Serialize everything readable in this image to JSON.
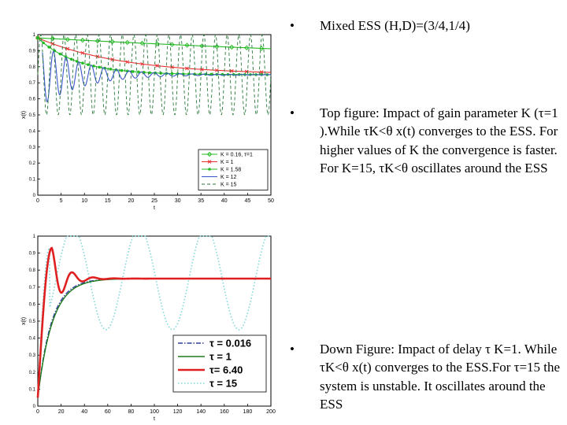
{
  "bullets": [
    {
      "marker": "•",
      "text": "Mixed ESS (H,D)=(3/4,1/4)"
    },
    {
      "marker": "•",
      "text": "Top figure: Impact of gain parameter K (τ=1 ).While τK<θ x(t) converges to the ESS. For higher values of K the convergence is faster. For K=15, τK<θ oscillates around the ESS"
    },
    {
      "marker": "•",
      "text": "Down Figure: Impact of delay τ K=1. While τK<θ x(t) converges to the ESS.For τ=15 the system is unstable. It oscillates around the ESS"
    }
  ],
  "chart_data": [
    {
      "type": "line",
      "xlabel": "t",
      "ylabel": "x(t)",
      "xlim": [
        0,
        50
      ],
      "ylim": [
        0,
        1
      ],
      "xticks": [
        "0",
        "5",
        "10",
        "15",
        "20",
        "25",
        "30",
        "35",
        "40",
        "45",
        "50"
      ],
      "yticks": [
        "0",
        "0.1",
        "0.2",
        "0.3",
        "0.4",
        "0.5",
        "0.6",
        "0.7",
        "0.8",
        "0.9",
        "1"
      ],
      "grid": false,
      "legend_position": "lower-right",
      "ess": 0.75,
      "series": [
        {
          "name": "K = 0.16, τ=1",
          "color": "#22bb22",
          "style": "solid",
          "marker": "diamond",
          "x0": 0,
          "x1": 50,
          "y0": 0.98,
          "asymptote": 0.75,
          "rate": 0.007,
          "amp": 0,
          "period": 1,
          "damping": 0
        },
        {
          "name": "K = 1",
          "color": "#e83030",
          "style": "solid",
          "marker": "cross",
          "x0": 0,
          "x1": 50,
          "y0": 0.98,
          "asymptote": 0.75,
          "rate": 0.055,
          "amp": 0,
          "period": 1,
          "damping": 0
        },
        {
          "name": "K = 1.58",
          "color": "#22bb22",
          "style": "solid",
          "marker": "dot",
          "x0": 0,
          "x1": 50,
          "y0": 0.98,
          "asymptote": 0.75,
          "rate": 0.12,
          "amp": 0,
          "period": 1,
          "damping": 0
        },
        {
          "name": "K = 12",
          "color": "#3a56c8",
          "style": "solid",
          "marker": "none",
          "x0": 1,
          "x1": 50,
          "y0": 0.75,
          "asymptote": 0.75,
          "rate": 0,
          "amp": 0.21,
          "period": 2.7,
          "damping": 0.11
        },
        {
          "name": "K = 15",
          "color": "#2a7a3a",
          "style": "dashed",
          "marker": "none",
          "x0": 0,
          "x1": 50,
          "y0": 0.75,
          "asymptote": 0.75,
          "rate": 0,
          "amp": 0.25,
          "period": 2.5,
          "damping": 0
        }
      ]
    },
    {
      "type": "line",
      "xlabel": "t",
      "ylabel": "x(t)",
      "xlim": [
        0,
        200
      ],
      "ylim": [
        0,
        1
      ],
      "xticks": [
        "0",
        "20",
        "40",
        "60",
        "80",
        "100",
        "120",
        "140",
        "160",
        "180",
        "200"
      ],
      "yticks": [
        "0",
        "0.1",
        "0.2",
        "0.3",
        "0.4",
        "0.5",
        "0.6",
        "0.7",
        "0.8",
        "0.9",
        "1"
      ],
      "grid": false,
      "legend_position": "lower-right",
      "ess": 0.75,
      "series": [
        {
          "name": "τ = 0.016",
          "color": "#2f3e9e",
          "style": "dashdot",
          "kind": "rise",
          "asymptote": 0.75,
          "start": 0.05,
          "rate": 0.085
        },
        {
          "name": "τ = 1",
          "color": "#1f7a1f",
          "style": "solid",
          "kind": "rise",
          "asymptote": 0.75,
          "start": 0.05,
          "rate": 0.08
        },
        {
          "name": "τ= 6.40",
          "color": "#e02020",
          "style": "solid",
          "kind": "overshoot",
          "asymptote": 0.75,
          "start": 0.05,
          "peak": 0.93,
          "peak_t": 12
        },
        {
          "name": "τ = 15",
          "color": "#7fd7dc",
          "style": "dotted",
          "kind": "oscillate",
          "asymptote": 0.75,
          "start": 0.05,
          "amp": 0.3,
          "period": 57,
          "phase_t": 30
        }
      ]
    }
  ]
}
